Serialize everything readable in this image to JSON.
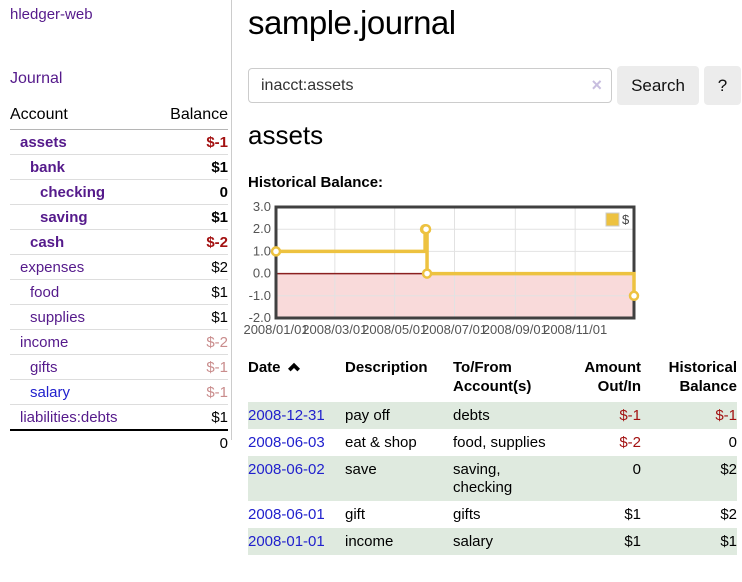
{
  "colors": {
    "link_purple": "#551a8b",
    "link_blue": "#2121cd",
    "negative_strong": "#a31111",
    "negative_muted": "#c98c8c",
    "row_shade_green": "#dfeadf",
    "series_yellow": "#edc240",
    "negative_region_pink": "#f9dada",
    "zero_line_red": "#8b2020"
  },
  "brand": "hledger-web",
  "sidebar": {
    "journal_link": "Journal",
    "accounts": {
      "col_account": "Account",
      "col_balance": "Balance",
      "rows": [
        {
          "account": "assets",
          "indent": 1,
          "matched": true,
          "link_class": "purple",
          "balance": "$-1",
          "balance_class": "neg-strong"
        },
        {
          "account": "bank",
          "indent": 2,
          "matched": true,
          "link_class": "purple",
          "balance": "$1",
          "balance_class": "pos"
        },
        {
          "account": "checking",
          "indent": 3,
          "matched": true,
          "link_class": "purple",
          "balance": "0",
          "balance_class": "pos"
        },
        {
          "account": "saving",
          "indent": 3,
          "matched": true,
          "link_class": "purple",
          "balance": "$1",
          "balance_class": "pos"
        },
        {
          "account": "cash",
          "indent": 2,
          "matched": true,
          "link_class": "purple",
          "balance": "$-2",
          "balance_class": "neg-strong"
        },
        {
          "account": "expenses",
          "indent": 1,
          "matched": false,
          "link_class": "purple",
          "balance": "$2",
          "balance_class": "pos"
        },
        {
          "account": "food",
          "indent": 2,
          "matched": false,
          "link_class": "purple",
          "balance": "$1",
          "balance_class": "pos"
        },
        {
          "account": "supplies",
          "indent": 2,
          "matched": false,
          "link_class": "purple",
          "balance": "$1",
          "balance_class": "pos"
        },
        {
          "account": "income",
          "indent": 1,
          "matched": false,
          "link_class": "purple",
          "balance": "$-2",
          "balance_class": "neg-muted"
        },
        {
          "account": "gifts",
          "indent": 2,
          "matched": false,
          "link_class": "purple",
          "balance": "$-1",
          "balance_class": "neg-muted"
        },
        {
          "account": "salary",
          "indent": 2,
          "matched": false,
          "link_class": "blue",
          "balance": "$-1",
          "balance_class": "neg-muted"
        },
        {
          "account": "liabilities:debts",
          "indent": 1,
          "matched": false,
          "link_class": "purple",
          "balance": "$1",
          "balance_class": "pos"
        }
      ],
      "total": "0"
    }
  },
  "header": {
    "title": "sample.journal"
  },
  "search": {
    "value": "inacct:assets",
    "clear_icon": "×",
    "search_button": "Search",
    "help_button": "?"
  },
  "account_page": {
    "title": "assets",
    "section_label": "Historical Balance:"
  },
  "chart_data": {
    "type": "line",
    "title": "Historical Balance of assets",
    "step": true,
    "series": [
      {
        "name": "$",
        "color": "#edc240",
        "points": [
          [
            "2008-01-01",
            1
          ],
          [
            "2008-06-01",
            2
          ],
          [
            "2008-06-02",
            2
          ],
          [
            "2008-06-03",
            0
          ],
          [
            "2008-12-31",
            -1
          ]
        ]
      }
    ],
    "xrange": [
      "2008-01-01",
      "2008-12-31"
    ],
    "ylim": [
      -2,
      3
    ],
    "yticks": [
      3.0,
      2.0,
      1.0,
      0.0,
      -1.0,
      -2.0
    ],
    "ytick_labels": [
      "3.0",
      "2.0",
      "1.0",
      "0.0",
      "-1.0",
      "-2.0"
    ],
    "xticks": [
      "2008-01-01",
      "2008-03-01",
      "2008-05-01",
      "2008-07-01",
      "2008-09-01",
      "2008-11-01"
    ],
    "xtick_labels": [
      "2008/01/01",
      "2008/03/01",
      "2008/05/01",
      "2008/07/01",
      "2008/09/01",
      "2008/11/01"
    ],
    "grid": true,
    "legend_position": "top-right",
    "legend": [
      "$"
    ],
    "negative_region_color": "#f9dada",
    "zero_line_color": "#8b2020"
  },
  "register_table": {
    "headers": [
      {
        "label": "Date",
        "sort_icon": "chevron-up-icon"
      },
      {
        "label": "Description"
      },
      {
        "label": "To/From\nAccount(s)"
      },
      {
        "label": "Amount\nOut/In"
      },
      {
        "label": "Historical\nBalance"
      }
    ],
    "rows": [
      {
        "date": "2008-12-31",
        "description": "pay off",
        "accounts": "debts",
        "amount": "$-1",
        "amount_neg": true,
        "balance": "$-1",
        "balance_neg": true,
        "shaded": true
      },
      {
        "date": "2008-06-03",
        "description": "eat & shop",
        "accounts": "food, supplies",
        "amount": "$-2",
        "amount_neg": true,
        "balance": "0",
        "balance_neg": false,
        "shaded": false
      },
      {
        "date": "2008-06-02",
        "description": "save",
        "accounts": "saving, checking",
        "amount": "0",
        "amount_neg": false,
        "balance": "$2",
        "balance_neg": false,
        "shaded": true
      },
      {
        "date": "2008-06-01",
        "description": "gift",
        "accounts": "gifts",
        "amount": "$1",
        "amount_neg": false,
        "balance": "$2",
        "balance_neg": false,
        "shaded": false
      },
      {
        "date": "2008-01-01",
        "description": "income",
        "accounts": "salary",
        "amount": "$1",
        "amount_neg": false,
        "balance": "$1",
        "balance_neg": false,
        "shaded": true
      }
    ]
  }
}
